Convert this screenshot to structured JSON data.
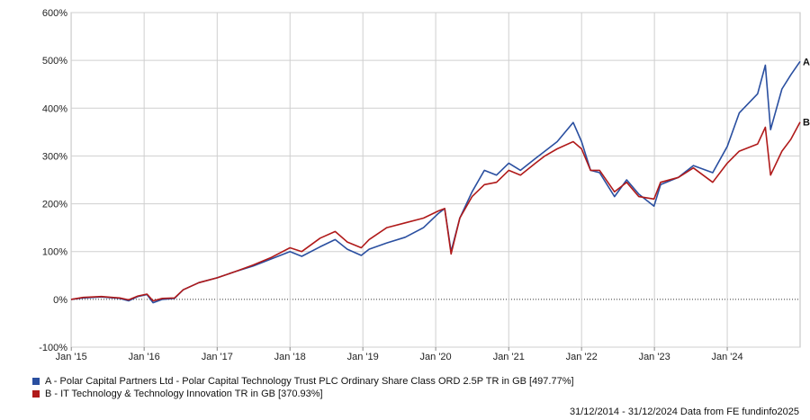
{
  "chart_data": {
    "type": "line",
    "y_unit": "%",
    "ylim": [
      -100,
      600
    ],
    "yticks": [
      -100,
      0,
      100,
      200,
      300,
      400,
      500,
      600
    ],
    "ytick_labels": [
      "-100%",
      "0%",
      "100%",
      "200%",
      "300%",
      "400%",
      "500%",
      "600%"
    ],
    "xlim": [
      "2014-12-31",
      "2024-12-31"
    ],
    "xtick_labels": [
      "Jan '15",
      "Jan '16",
      "Jan '17",
      "Jan '18",
      "Jan '19",
      "Jan '20",
      "Jan '21",
      "Jan '22",
      "Jan '23",
      "Jan '24"
    ],
    "grid": true,
    "zero_line": "dotted",
    "series": [
      {
        "name": "A - Polar Capital Partners Ltd - Polar Capital Technology Trust PLC Ordinary Share Class ORD 2.5P TR in GB [497.77%]",
        "end_label": "A",
        "color": "#2a4fa0",
        "points": [
          [
            "2014-12-31",
            0
          ],
          [
            "2015-03-01",
            3
          ],
          [
            "2015-06-01",
            5
          ],
          [
            "2015-09-01",
            2
          ],
          [
            "2015-10-15",
            -3
          ],
          [
            "2015-12-01",
            6
          ],
          [
            "2016-01-15",
            10
          ],
          [
            "2016-02-15",
            -7
          ],
          [
            "2016-04-01",
            0
          ],
          [
            "2016-06-01",
            2
          ],
          [
            "2016-07-15",
            20
          ],
          [
            "2016-10-01",
            35
          ],
          [
            "2017-01-01",
            45
          ],
          [
            "2017-04-01",
            58
          ],
          [
            "2017-07-01",
            70
          ],
          [
            "2017-10-01",
            85
          ],
          [
            "2018-01-01",
            100
          ],
          [
            "2018-03-01",
            90
          ],
          [
            "2018-06-01",
            110
          ],
          [
            "2018-08-15",
            125
          ],
          [
            "2018-10-15",
            105
          ],
          [
            "2018-12-24",
            92
          ],
          [
            "2019-02-01",
            105
          ],
          [
            "2019-05-01",
            118
          ],
          [
            "2019-08-01",
            130
          ],
          [
            "2019-11-01",
            150
          ],
          [
            "2020-01-15",
            180
          ],
          [
            "2020-02-15",
            190
          ],
          [
            "2020-03-18",
            100
          ],
          [
            "2020-05-01",
            170
          ],
          [
            "2020-07-01",
            225
          ],
          [
            "2020-09-01",
            270
          ],
          [
            "2020-11-01",
            260
          ],
          [
            "2021-01-01",
            285
          ],
          [
            "2021-03-01",
            270
          ],
          [
            "2021-05-15",
            295
          ],
          [
            "2021-07-01",
            310
          ],
          [
            "2021-09-01",
            330
          ],
          [
            "2021-11-20",
            370
          ],
          [
            "2022-01-01",
            330
          ],
          [
            "2022-02-15",
            270
          ],
          [
            "2022-04-01",
            265
          ],
          [
            "2022-06-15",
            215
          ],
          [
            "2022-08-15",
            250
          ],
          [
            "2022-10-15",
            220
          ],
          [
            "2022-12-30",
            195
          ],
          [
            "2023-02-01",
            240
          ],
          [
            "2023-05-01",
            255
          ],
          [
            "2023-07-15",
            280
          ],
          [
            "2023-10-20",
            265
          ],
          [
            "2024-01-01",
            320
          ],
          [
            "2024-03-01",
            390
          ],
          [
            "2024-06-01",
            430
          ],
          [
            "2024-07-10",
            490
          ],
          [
            "2024-08-05",
            355
          ],
          [
            "2024-10-01",
            440
          ],
          [
            "2024-11-15",
            470
          ],
          [
            "2024-12-31",
            497.77
          ]
        ]
      },
      {
        "name": "B - IT Technology & Technology Innovation TR in GB [370.93%]",
        "end_label": "B",
        "color": "#b01a1a",
        "points": [
          [
            "2014-12-31",
            0
          ],
          [
            "2015-03-01",
            4
          ],
          [
            "2015-06-01",
            6
          ],
          [
            "2015-09-01",
            3
          ],
          [
            "2015-10-15",
            -1
          ],
          [
            "2015-12-01",
            7
          ],
          [
            "2016-01-15",
            11
          ],
          [
            "2016-02-15",
            -3
          ],
          [
            "2016-04-01",
            2
          ],
          [
            "2016-06-01",
            3
          ],
          [
            "2016-07-15",
            20
          ],
          [
            "2016-10-01",
            35
          ],
          [
            "2017-01-01",
            45
          ],
          [
            "2017-04-01",
            58
          ],
          [
            "2017-07-01",
            72
          ],
          [
            "2017-10-01",
            88
          ],
          [
            "2018-01-01",
            108
          ],
          [
            "2018-03-01",
            100
          ],
          [
            "2018-06-01",
            128
          ],
          [
            "2018-08-15",
            142
          ],
          [
            "2018-10-15",
            120
          ],
          [
            "2018-12-24",
            108
          ],
          [
            "2019-02-01",
            125
          ],
          [
            "2019-05-01",
            150
          ],
          [
            "2019-08-01",
            160
          ],
          [
            "2019-11-01",
            170
          ],
          [
            "2020-01-15",
            185
          ],
          [
            "2020-02-15",
            190
          ],
          [
            "2020-03-18",
            95
          ],
          [
            "2020-05-01",
            170
          ],
          [
            "2020-07-01",
            215
          ],
          [
            "2020-09-01",
            240
          ],
          [
            "2020-11-01",
            245
          ],
          [
            "2021-01-01",
            270
          ],
          [
            "2021-03-01",
            260
          ],
          [
            "2021-05-15",
            285
          ],
          [
            "2021-07-01",
            300
          ],
          [
            "2021-09-01",
            315
          ],
          [
            "2021-11-20",
            330
          ],
          [
            "2022-01-01",
            315
          ],
          [
            "2022-02-15",
            270
          ],
          [
            "2022-04-01",
            270
          ],
          [
            "2022-06-15",
            225
          ],
          [
            "2022-08-15",
            245
          ],
          [
            "2022-10-15",
            215
          ],
          [
            "2022-12-30",
            210
          ],
          [
            "2023-02-01",
            245
          ],
          [
            "2023-05-01",
            255
          ],
          [
            "2023-07-15",
            275
          ],
          [
            "2023-10-20",
            245
          ],
          [
            "2024-01-01",
            285
          ],
          [
            "2024-03-01",
            310
          ],
          [
            "2024-06-01",
            325
          ],
          [
            "2024-07-10",
            360
          ],
          [
            "2024-08-05",
            260
          ],
          [
            "2024-10-01",
            310
          ],
          [
            "2024-11-15",
            335
          ],
          [
            "2024-12-31",
            370.93
          ]
        ]
      }
    ]
  },
  "legend": [
    {
      "color": "#2a4fa0",
      "label": "A - Polar Capital Partners Ltd - Polar Capital Technology Trust PLC Ordinary Share Class ORD 2.5P TR in GB [497.77%]"
    },
    {
      "color": "#b01a1a",
      "label": "B - IT Technology & Technology Innovation TR in GB [370.93%]"
    }
  ],
  "footer": "31/12/2014 - 31/12/2024 Data from FE fundinfo2025"
}
